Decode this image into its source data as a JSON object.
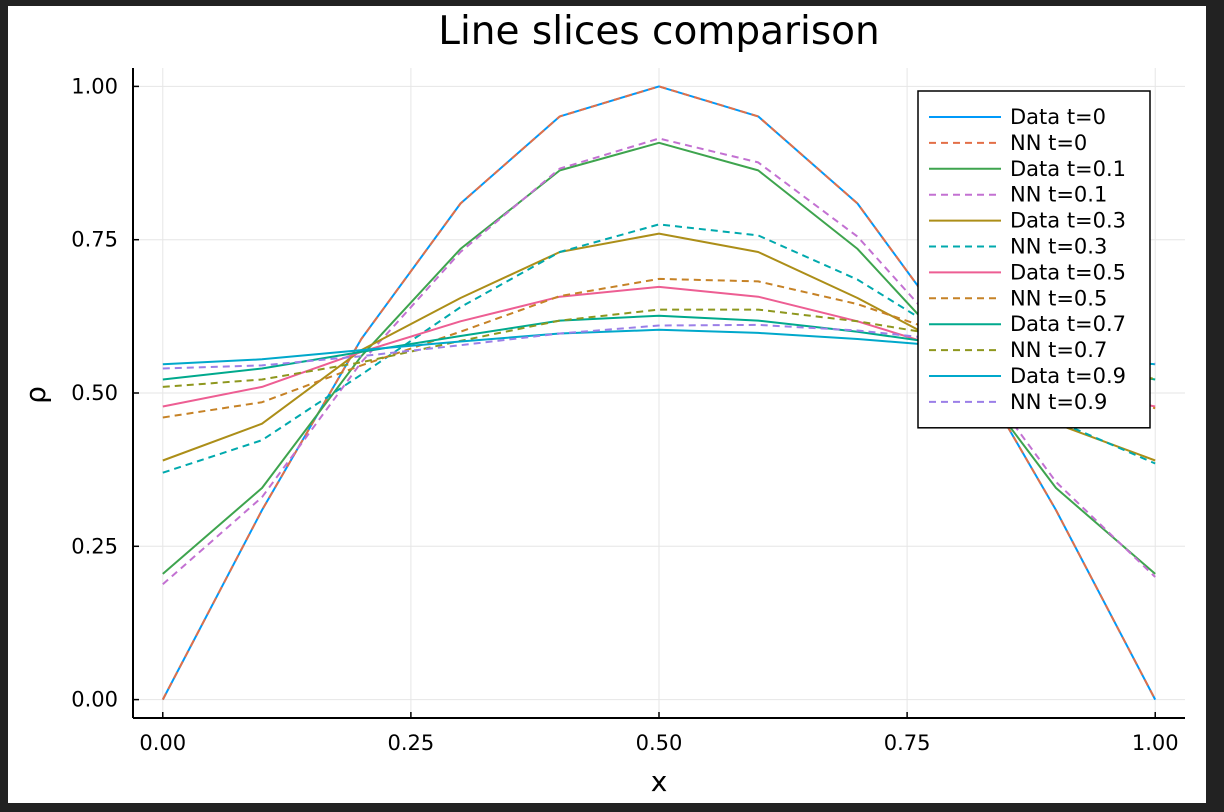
{
  "chart_data": {
    "type": "line",
    "title": "Line slices comparison",
    "xlabel": "x",
    "ylabel": "ρ",
    "xlim": [
      -0.03,
      1.03
    ],
    "ylim": [
      -0.03,
      1.03
    ],
    "grid": true,
    "legend_position": "top-right",
    "x": [
      0.0,
      0.1,
      0.2,
      0.3,
      0.4,
      0.5,
      0.6,
      0.7,
      0.8,
      0.9,
      1.0
    ],
    "xticks": [
      {
        "value": 0.0,
        "label": "0.00"
      },
      {
        "value": 0.25,
        "label": "0.25"
      },
      {
        "value": 0.5,
        "label": "0.50"
      },
      {
        "value": 0.75,
        "label": "0.75"
      },
      {
        "value": 1.0,
        "label": "1.00"
      }
    ],
    "yticks": [
      {
        "value": 0.0,
        "label": "0.00"
      },
      {
        "value": 0.25,
        "label": "0.25"
      },
      {
        "value": 0.5,
        "label": "0.50"
      },
      {
        "value": 0.75,
        "label": "0.75"
      },
      {
        "value": 1.0,
        "label": "1.00"
      }
    ],
    "series": [
      {
        "name": "Data t=0",
        "color": "#009AFA",
        "dashed": false,
        "values": [
          0.0,
          0.309,
          0.588,
          0.809,
          0.951,
          1.0,
          0.951,
          0.809,
          0.588,
          0.309,
          0.0
        ]
      },
      {
        "name": "NN t=0",
        "color": "#E36F47",
        "dashed": true,
        "values": [
          0.0,
          0.309,
          0.588,
          0.809,
          0.951,
          1.0,
          0.951,
          0.809,
          0.588,
          0.309,
          0.0
        ]
      },
      {
        "name": "Data t=0.1",
        "color": "#3EA44E",
        "dashed": false,
        "values": [
          0.205,
          0.345,
          0.56,
          0.735,
          0.863,
          0.908,
          0.863,
          0.735,
          0.56,
          0.345,
          0.205
        ]
      },
      {
        "name": "NN t=0.1",
        "color": "#C371D2",
        "dashed": true,
        "values": [
          0.188,
          0.33,
          0.55,
          0.73,
          0.866,
          0.915,
          0.876,
          0.755,
          0.575,
          0.355,
          0.2
        ]
      },
      {
        "name": "Data t=0.3",
        "color": "#AC8E18",
        "dashed": false,
        "values": [
          0.39,
          0.45,
          0.57,
          0.655,
          0.73,
          0.76,
          0.73,
          0.655,
          0.57,
          0.45,
          0.39
        ]
      },
      {
        "name": "NN t=0.3",
        "color": "#00A9AD",
        "dashed": true,
        "values": [
          0.37,
          0.423,
          0.53,
          0.64,
          0.73,
          0.775,
          0.757,
          0.685,
          0.585,
          0.455,
          0.385
        ]
      },
      {
        "name": "Data t=0.5",
        "color": "#ED5E93",
        "dashed": false,
        "values": [
          0.478,
          0.51,
          0.567,
          0.617,
          0.657,
          0.673,
          0.657,
          0.617,
          0.567,
          0.51,
          0.478
        ]
      },
      {
        "name": "NN t=0.5",
        "color": "#C68226",
        "dashed": true,
        "values": [
          0.46,
          0.485,
          0.545,
          0.6,
          0.658,
          0.686,
          0.682,
          0.645,
          0.59,
          0.52,
          0.475
        ]
      },
      {
        "name": "Data t=0.7",
        "color": "#00A98D",
        "dashed": false,
        "values": [
          0.522,
          0.54,
          0.567,
          0.593,
          0.618,
          0.626,
          0.618,
          0.6,
          0.577,
          0.548,
          0.522
        ]
      },
      {
        "name": "NN t=0.7",
        "color": "#8E971E",
        "dashed": true,
        "values": [
          0.51,
          0.522,
          0.55,
          0.585,
          0.618,
          0.636,
          0.636,
          0.617,
          0.59,
          0.55,
          0.523
        ]
      },
      {
        "name": "Data t=0.9",
        "color": "#00A8CB",
        "dashed": false,
        "values": [
          0.547,
          0.555,
          0.57,
          0.584,
          0.597,
          0.603,
          0.598,
          0.588,
          0.575,
          0.56,
          0.547
        ]
      },
      {
        "name": "NN t=0.9",
        "color": "#9B7FE8",
        "dashed": true,
        "values": [
          0.54,
          0.545,
          0.56,
          0.578,
          0.597,
          0.61,
          0.611,
          0.602,
          0.585,
          0.56,
          0.548
        ]
      }
    ]
  }
}
